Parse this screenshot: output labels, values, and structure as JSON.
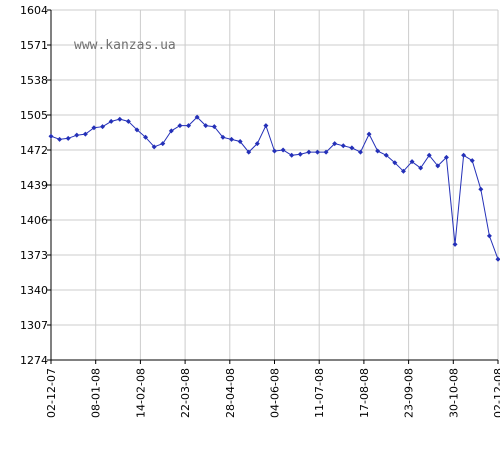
{
  "watermark": "www.kanzas.ua",
  "colors": {
    "line": "#2430b8",
    "grid": "#cccccc",
    "axis": "#000000"
  },
  "chart_data": {
    "type": "line",
    "title": "",
    "xlabel": "",
    "ylabel": "",
    "ylim": [
      1274,
      1604
    ],
    "y_ticks": [
      1274,
      1307,
      1340,
      1373,
      1406,
      1439,
      1472,
      1505,
      1538,
      1571,
      1604
    ],
    "x_ticks": [
      "02-12-07",
      "08-01-08",
      "14-02-08",
      "22-03-08",
      "28-04-08",
      "04-06-08",
      "11-07-08",
      "17-08-08",
      "23-09-08",
      "30-10-08",
      "02-12-08"
    ],
    "grid": true,
    "series": [
      {
        "values": [
          1485,
          1482,
          1483,
          1486,
          1487,
          1493,
          1494,
          1499,
          1501,
          1499,
          1491,
          1484,
          1475,
          1478,
          1490,
          1495,
          1495,
          1503,
          1495,
          1494,
          1484,
          1482,
          1480,
          1470,
          1478,
          1495,
          1471,
          1472,
          1467,
          1468,
          1470,
          1470,
          1470,
          1478,
          1476,
          1474,
          1470,
          1487,
          1471,
          1467,
          1460,
          1452,
          1461,
          1455,
          1467,
          1457,
          1465,
          1383,
          1467,
          1462,
          1435,
          1391,
          1369
        ]
      }
    ]
  }
}
